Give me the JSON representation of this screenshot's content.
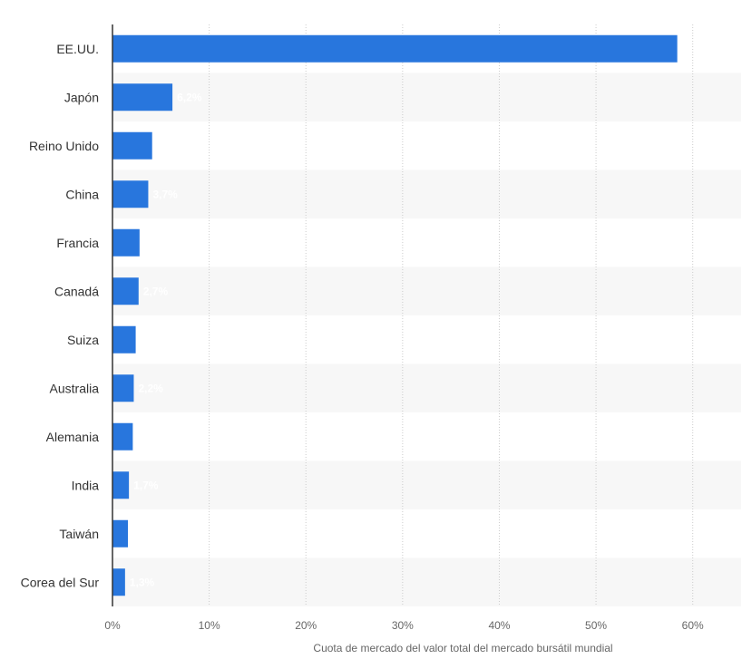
{
  "chart_data": {
    "type": "bar",
    "orientation": "horizontal",
    "title": "",
    "xlabel": "Cuota de mercado del valor total del mercado bursátil mundial",
    "ylabel": "",
    "categories": [
      "EE.UU.",
      "Japón",
      "Reino Unido",
      "China",
      "Francia",
      "Canadá",
      "Suiza",
      "Australia",
      "Alemania",
      "India",
      "Taiwán",
      "Corea del Sur"
    ],
    "values": [
      58.4,
      6.2,
      4.1,
      3.7,
      2.8,
      2.7,
      2.4,
      2.2,
      2.1,
      1.7,
      1.6,
      1.3
    ],
    "data_labels": [
      "",
      "6,2%",
      "",
      "3,7%",
      "",
      "2,7%",
      "",
      "2,2%",
      "",
      "1,7%",
      "",
      "1,3%"
    ],
    "xlim": [
      0,
      65
    ],
    "xticks": [
      0,
      10,
      20,
      30,
      40,
      50,
      60
    ],
    "xtick_labels": [
      "0%",
      "10%",
      "20%",
      "30%",
      "40%",
      "50%",
      "60%"
    ],
    "grid": true,
    "legend": "none",
    "colors": {
      "bar": "#2876dd",
      "band": "#f7f7f7",
      "grid": "#cccccc",
      "axis": "#333333"
    }
  }
}
